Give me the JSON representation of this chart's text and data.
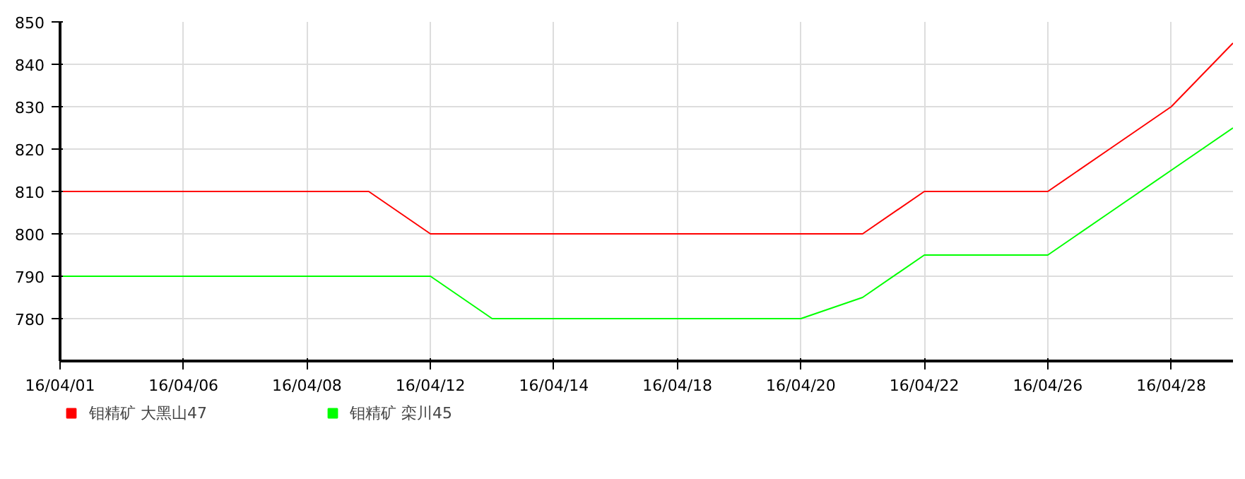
{
  "chart_data": {
    "type": "line",
    "categories": [
      "16/04/01",
      null,
      "16/04/06",
      null,
      "16/04/08",
      null,
      "16/04/12",
      null,
      "16/04/14",
      null,
      "16/04/18",
      null,
      "16/04/20",
      null,
      "16/04/22",
      null,
      "16/04/26",
      null,
      "16/04/28",
      null
    ],
    "series": [
      {
        "name": "钼精矿 大黑山47",
        "color": "#ff0000",
        "values": [
          810,
          810,
          810,
          810,
          810,
          810,
          800,
          800,
          800,
          800,
          800,
          800,
          800,
          800,
          810,
          810,
          810,
          820,
          830,
          845
        ]
      },
      {
        "name": "钼精矿 栾川45",
        "color": "#00ff00",
        "values": [
          790,
          790,
          790,
          790,
          790,
          790,
          790,
          780,
          780,
          780,
          780,
          780,
          780,
          785,
          795,
          795,
          795,
          805,
          815,
          825
        ]
      }
    ],
    "ylim": [
      770,
      850
    ],
    "yticks": [
      780,
      790,
      800,
      810,
      820,
      830,
      840,
      850
    ],
    "grid": true,
    "legend": "bottom left",
    "marker": "none",
    "line_style": "solid"
  }
}
